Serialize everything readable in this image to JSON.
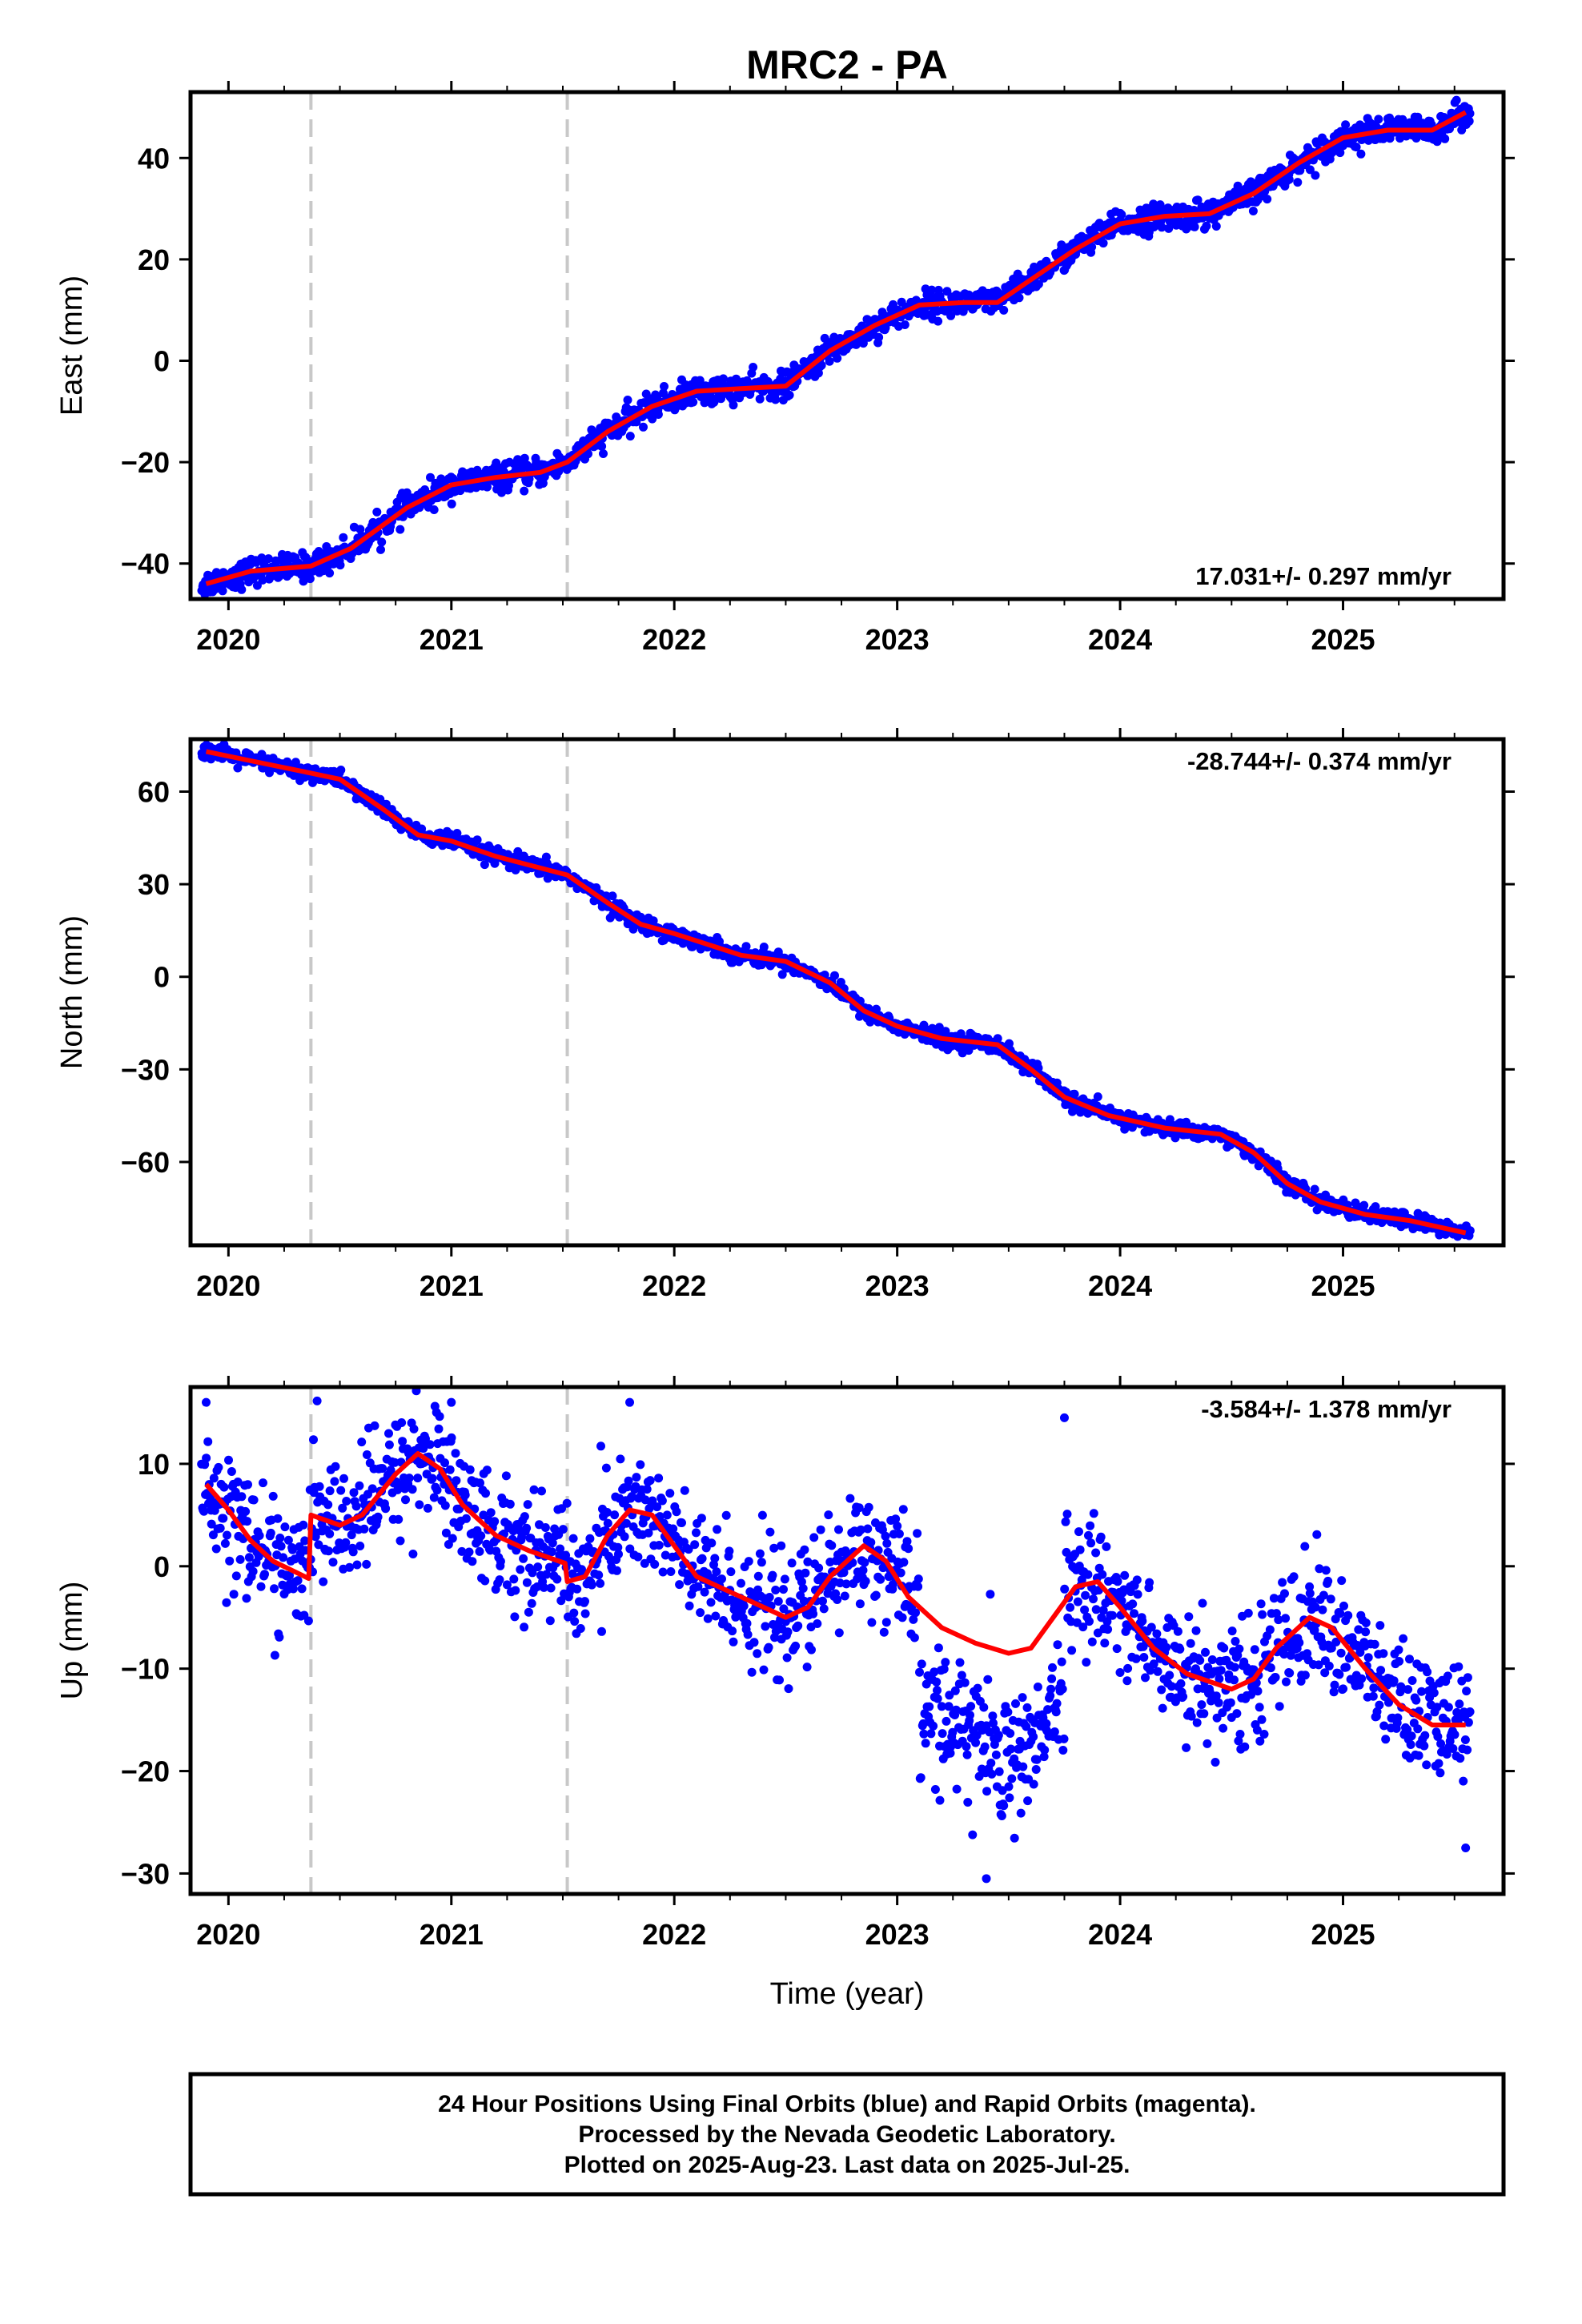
{
  "title": "MRC2 - PA",
  "xlabel": "Time (year)",
  "footnote": {
    "line1": "24 Hour Positions Using Final Orbits (blue) and Rapid Orbits (magenta).",
    "line2": "Processed by the Nevada Geodetic Laboratory.",
    "line3": "Plotted on 2025-Aug-23. Last data on 2025-Jul-25."
  },
  "colors": {
    "final_orbits": "#0000ff",
    "model_fit": "#ff0000",
    "equipment_change": "#c8c8c8",
    "frame": "#000000"
  },
  "chart_data": [
    {
      "type": "scatter",
      "name": "east",
      "ylabel": "East (mm)",
      "rate": "17.031+/- 0.297 mm/yr",
      "rate_position": "bottom-right",
      "xlim": [
        2019.83,
        2025.72
      ],
      "ylim": [
        -47,
        53
      ],
      "xticks": [
        "2020",
        "2021",
        "2022",
        "2023",
        "2024",
        "2025"
      ],
      "yticks": [
        "40",
        "20",
        "0",
        "−20",
        "−40"
      ],
      "ytick_values": [
        40,
        20,
        0,
        -20,
        -40
      ],
      "offset_lines": [
        2020.37,
        2021.52
      ],
      "fit": [
        [
          2019.9,
          -44
        ],
        [
          2020.1,
          -41.5
        ],
        [
          2020.37,
          -40.5
        ],
        [
          2020.55,
          -37
        ],
        [
          2020.8,
          -29
        ],
        [
          2021.0,
          -24.5
        ],
        [
          2021.2,
          -23
        ],
        [
          2021.4,
          -22
        ],
        [
          2021.52,
          -20
        ],
        [
          2021.7,
          -14
        ],
        [
          2021.9,
          -9
        ],
        [
          2022.1,
          -6
        ],
        [
          2022.3,
          -5.5
        ],
        [
          2022.5,
          -5
        ],
        [
          2022.7,
          2
        ],
        [
          2022.9,
          7
        ],
        [
          2023.1,
          11
        ],
        [
          2023.3,
          11.5
        ],
        [
          2023.45,
          11.5
        ],
        [
          2023.6,
          16
        ],
        [
          2023.8,
          22
        ],
        [
          2024.0,
          27
        ],
        [
          2024.2,
          28.5
        ],
        [
          2024.4,
          29
        ],
        [
          2024.6,
          33
        ],
        [
          2024.8,
          39
        ],
        [
          2025.0,
          44
        ],
        [
          2025.2,
          45.5
        ],
        [
          2025.4,
          45.5
        ],
        [
          2025.55,
          49
        ]
      ],
      "scatter_sd": 1.3
    },
    {
      "type": "scatter",
      "name": "north",
      "ylabel": "North (mm)",
      "rate": "-28.744+/- 0.374 mm/yr",
      "rate_position": "top-right",
      "xlim": [
        2019.83,
        2025.72
      ],
      "ylim": [
        -87,
        77
      ],
      "xticks": [
        "2020",
        "2021",
        "2022",
        "2023",
        "2024",
        "2025"
      ],
      "yticks": [
        "60",
        "30",
        "0",
        "−30",
        "−60"
      ],
      "ytick_values": [
        60,
        30,
        0,
        -30,
        -60
      ],
      "offset_lines": [
        2020.37,
        2021.52
      ],
      "fit": [
        [
          2019.9,
          73
        ],
        [
          2020.1,
          70
        ],
        [
          2020.37,
          66
        ],
        [
          2020.5,
          64
        ],
        [
          2020.7,
          54
        ],
        [
          2020.85,
          46
        ],
        [
          2021.0,
          44
        ],
        [
          2021.2,
          39
        ],
        [
          2021.52,
          33
        ],
        [
          2021.7,
          24
        ],
        [
          2021.85,
          17
        ],
        [
          2022.0,
          14
        ],
        [
          2022.3,
          7
        ],
        [
          2022.5,
          5
        ],
        [
          2022.7,
          -2
        ],
        [
          2022.85,
          -11
        ],
        [
          2023.0,
          -16
        ],
        [
          2023.2,
          -20
        ],
        [
          2023.45,
          -22
        ],
        [
          2023.6,
          -30
        ],
        [
          2023.75,
          -39
        ],
        [
          2023.95,
          -45
        ],
        [
          2024.2,
          -49
        ],
        [
          2024.45,
          -51
        ],
        [
          2024.6,
          -57
        ],
        [
          2024.75,
          -67
        ],
        [
          2024.9,
          -73
        ],
        [
          2025.1,
          -77
        ],
        [
          2025.3,
          -79
        ],
        [
          2025.55,
          -83
        ]
      ],
      "scatter_sd": 1.3
    },
    {
      "type": "scatter",
      "name": "up",
      "ylabel": "Up (mm)",
      "rate": "-3.584+/- 1.378 mm/yr",
      "rate_position": "top-right",
      "xlim": [
        2019.83,
        2025.72
      ],
      "ylim": [
        -32,
        17.5
      ],
      "xticks": [
        "2020",
        "2021",
        "2022",
        "2023",
        "2024",
        "2025"
      ],
      "yticks": [
        "10",
        "0",
        "−10",
        "−20",
        "−30"
      ],
      "ytick_values": [
        10,
        0,
        -10,
        -20,
        -30
      ],
      "offset_lines": [
        2020.37,
        2021.52
      ],
      "fit": [
        [
          2019.9,
          8
        ],
        [
          2020.0,
          5.5
        ],
        [
          2020.1,
          2.5
        ],
        [
          2020.2,
          0.5
        ],
        [
          2020.36,
          -1.2
        ],
        [
          2020.37,
          5
        ],
        [
          2020.5,
          4
        ],
        [
          2020.6,
          5
        ],
        [
          2020.75,
          9
        ],
        [
          2020.85,
          11
        ],
        [
          2020.95,
          9.5
        ],
        [
          2021.05,
          6
        ],
        [
          2021.2,
          3
        ],
        [
          2021.35,
          1.5
        ],
        [
          2021.51,
          0.3
        ],
        [
          2021.52,
          -1.5
        ],
        [
          2021.6,
          -1
        ],
        [
          2021.7,
          3
        ],
        [
          2021.8,
          5.5
        ],
        [
          2021.9,
          5
        ],
        [
          2022.0,
          2
        ],
        [
          2022.1,
          -1
        ],
        [
          2022.25,
          -2.5
        ],
        [
          2022.4,
          -4
        ],
        [
          2022.5,
          -5
        ],
        [
          2022.6,
          -4
        ],
        [
          2022.7,
          -1
        ],
        [
          2022.85,
          2
        ],
        [
          2022.95,
          0.5
        ],
        [
          2023.05,
          -3
        ],
        [
          2023.2,
          -6
        ],
        [
          2023.35,
          -7.5
        ],
        [
          2023.5,
          -8.5
        ],
        [
          2023.6,
          -8
        ],
        [
          2023.7,
          -5
        ],
        [
          2023.8,
          -2
        ],
        [
          2023.9,
          -1.5
        ],
        [
          2024.0,
          -4
        ],
        [
          2024.15,
          -8
        ],
        [
          2024.3,
          -10.5
        ],
        [
          2024.5,
          -12
        ],
        [
          2024.6,
          -11
        ],
        [
          2024.7,
          -8
        ],
        [
          2024.85,
          -5
        ],
        [
          2024.95,
          -6
        ],
        [
          2025.1,
          -10
        ],
        [
          2025.25,
          -13.5
        ],
        [
          2025.4,
          -15.5
        ],
        [
          2025.55,
          -15.5
        ]
      ],
      "scatter_sd": 3.0,
      "outliers": [
        [
          2019.9,
          16
        ],
        [
          2021.0,
          16
        ],
        [
          2021.8,
          16
        ],
        [
          2023.75,
          14.5
        ],
        [
          2023.4,
          -30.5
        ],
        [
          2025.55,
          -27.5
        ]
      ]
    }
  ]
}
